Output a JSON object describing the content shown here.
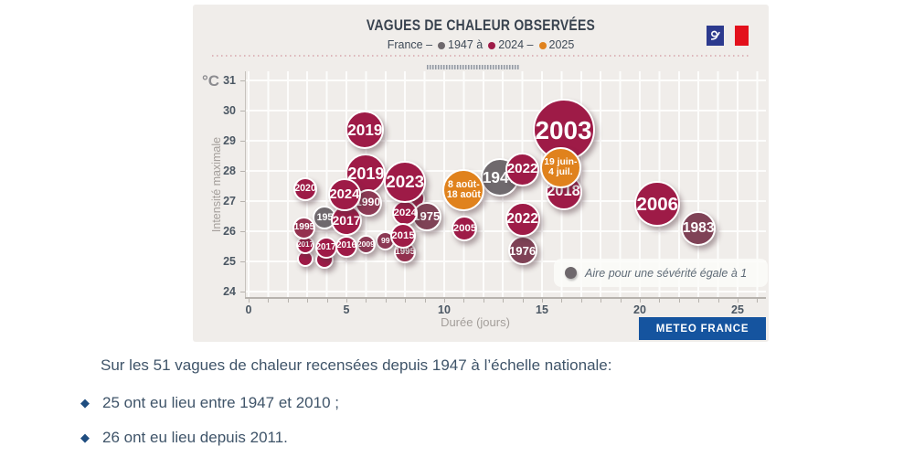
{
  "header": {
    "title": "VAGUES DE CHALEUR OBSERVÉES",
    "sub_f": "France –",
    "sub_y1": "1947 à",
    "sub_y2": "2024 –",
    "sub_y3": "2025",
    "dot_colors": {
      "old": "#6e686c",
      "recent": "#9e1b47",
      "current": "#e0821d"
    }
  },
  "chart_data": {
    "type": "scatter",
    "title": "VAGUES DE CHALEUR OBSERVÉES",
    "subtitle": "France – 1947 à 2024 – 2025",
    "xlabel": "Durée (jours)",
    "ylabel": "Intensité maximale",
    "y_unit": "°C",
    "xlim": [
      0,
      26.5
    ],
    "ylim": [
      23.8,
      31.3
    ],
    "x_ticks": [
      0,
      5,
      10,
      15,
      20,
      25
    ],
    "y_ticks": [
      31,
      30,
      29,
      28,
      27,
      26,
      25,
      24
    ],
    "grid": true,
    "legend_note": "Aire pour une sévérité égale à 1",
    "colors": {
      "gray": "#6f696d",
      "crimson": "#9e1b47",
      "rose": "#8c3954",
      "rose2": "#94314f",
      "mauve": "#7f4256",
      "orange": "#e0821d"
    },
    "points": [
      {
        "name": "sliver-a",
        "label": "",
        "x": 2.9,
        "y": 25.1,
        "r": 9,
        "tone": "crimson"
      },
      {
        "name": "sliver-b",
        "label": "",
        "x": 3.9,
        "y": 25.05,
        "r": 10,
        "tone": "crimson"
      },
      {
        "label": "195",
        "x": 3.9,
        "y": 26.45,
        "r": 13,
        "tone": "gray"
      },
      {
        "label": "2017",
        "x": 2.9,
        "y": 25.55,
        "r": 10,
        "tone": "crimson"
      },
      {
        "label": "1995",
        "x": 2.85,
        "y": 26.1,
        "r": 12.5,
        "tone": "rose2"
      },
      {
        "label": "2019",
        "x": 6.0,
        "y": 27.9,
        "r": 22,
        "tone": "crimson"
      },
      {
        "label": "2017",
        "x": 5.0,
        "y": 26.35,
        "r": 17,
        "tone": "crimson"
      },
      {
        "label": "1990",
        "x": 6.1,
        "y": 26.95,
        "r": 15,
        "tone": "rose"
      },
      {
        "name": "hidden",
        "label": "",
        "x": 8.4,
        "y": 27.1,
        "r": 13,
        "tone": "crimson"
      },
      {
        "label": "1975",
        "x": 9.1,
        "y": 26.5,
        "r": 16,
        "tone": "mauve"
      },
      {
        "label": "2024",
        "x": 8.0,
        "y": 26.6,
        "r": 14,
        "tone": "crimson"
      },
      {
        "label": "2023",
        "x": 8.0,
        "y": 27.65,
        "r": 23,
        "tone": "crimson"
      },
      {
        "label": "2024",
        "x": 4.9,
        "y": 27.2,
        "r": 18,
        "tone": "crimson"
      },
      {
        "label": "2020",
        "x": 2.9,
        "y": 27.4,
        "r": 13,
        "tone": "crimson"
      },
      {
        "label": "2019",
        "x": 5.95,
        "y": 29.35,
        "r": 21,
        "tone": "crimson"
      },
      {
        "label": "2017",
        "x": 3.95,
        "y": 25.45,
        "r": 12,
        "tone": "crimson"
      },
      {
        "label": "99",
        "x": 7.0,
        "y": 25.67,
        "r": 10.5,
        "tone": "rose"
      },
      {
        "label": "2009",
        "x": 6.0,
        "y": 25.55,
        "r": 10.5,
        "tone": "rose"
      },
      {
        "label": "2016",
        "x": 5.0,
        "y": 25.5,
        "r": 12,
        "tone": "crimson"
      },
      {
        "label": "1995",
        "x": 8.0,
        "y": 25.3,
        "r": 12,
        "tone": "rose2"
      },
      {
        "label": "2015",
        "x": 7.9,
        "y": 25.85,
        "r": 14,
        "tone": "crimson"
      },
      {
        "label": "1947",
        "x": 12.85,
        "y": 27.8,
        "r": 21,
        "tone": "gray"
      },
      {
        "label": "2003",
        "x": 16.1,
        "y": 29.35,
        "r": 34,
        "tone": "crimson"
      },
      {
        "label": "2022",
        "x": 14.0,
        "y": 28.05,
        "r": 18.5,
        "tone": "crimson"
      },
      {
        "label": "2018",
        "x": 16.1,
        "y": 27.3,
        "r": 20,
        "tone": "crimson"
      },
      {
        "label": "19 juin-\n4 juil.",
        "x": 15.95,
        "y": 28.1,
        "r": 22.5,
        "tone": "orange"
      },
      {
        "label": "8 août-\n18 août",
        "x": 11.0,
        "y": 27.35,
        "r": 23,
        "tone": "orange"
      },
      {
        "label": "2005",
        "x": 11.05,
        "y": 26.1,
        "r": 14,
        "tone": "crimson"
      },
      {
        "label": "1976",
        "x": 14.0,
        "y": 25.35,
        "r": 16,
        "tone": "mauve"
      },
      {
        "label": "2022",
        "x": 14.0,
        "y": 26.4,
        "r": 19,
        "tone": "crimson"
      },
      {
        "label": "1983",
        "x": 23.0,
        "y": 26.1,
        "r": 19,
        "tone": "mauve"
      },
      {
        "label": "2006",
        "x": 20.9,
        "y": 26.9,
        "r": 25,
        "tone": "crimson"
      }
    ]
  },
  "badge": "METEO FRANCE",
  "footer": {
    "intro": "Sur les 51 vagues de chaleur recensées depuis 1947 à l’échelle nationale:",
    "bullets": [
      "25 ont eu lieu entre 1947 et 2010 ;",
      "26 ont eu lieu depuis 2011."
    ]
  }
}
